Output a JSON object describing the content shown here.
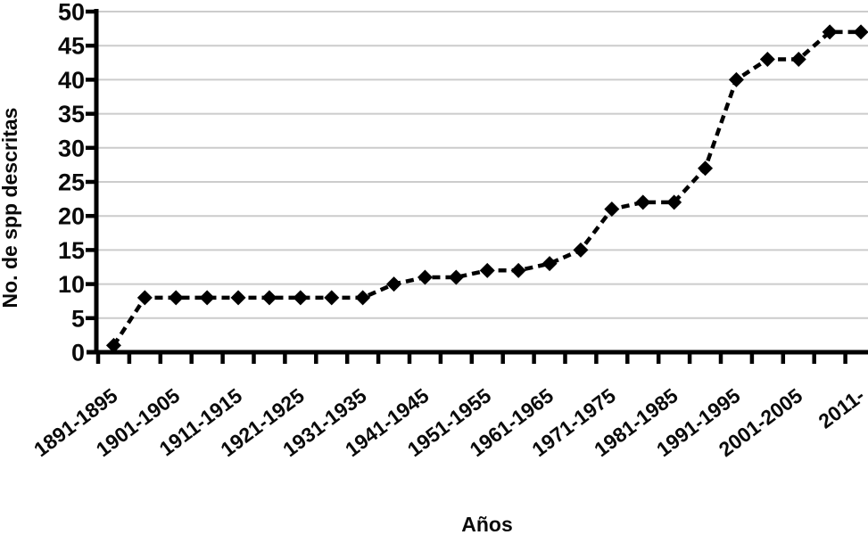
{
  "chart_data": {
    "type": "line",
    "title": "",
    "xlabel": "Años",
    "ylabel": "No. de spp descritas",
    "x_tick_labels": [
      "1891-1895",
      "1901-1905",
      "1911-1915",
      "1921-1925",
      "1931-1935",
      "1941-1945",
      "1951-1955",
      "1961-1965",
      "1971-1975",
      "1981-1985",
      "1991-1995",
      "2001-2005",
      "2011-"
    ],
    "x_label_every_n_points": 2,
    "y_tick_labels": [
      "0",
      "5",
      "10",
      "15",
      "20",
      "25",
      "30",
      "35",
      "40",
      "45",
      "50"
    ],
    "num_points": 25,
    "values": [
      1,
      8,
      8,
      8,
      8,
      8,
      8,
      8,
      8,
      10,
      11,
      11,
      12,
      12,
      13,
      15,
      21,
      22,
      22,
      27,
      40,
      43,
      43,
      47,
      47
    ],
    "ylim": [
      0,
      50
    ],
    "ytick_step": 5,
    "grid": "horizontal",
    "legend": "none",
    "line_style": "dashed",
    "marker": "diamond",
    "line_color": "#000000",
    "axis_color": "#000000",
    "gridline_color": "#cccccc",
    "background_color": "#ffffff"
  }
}
